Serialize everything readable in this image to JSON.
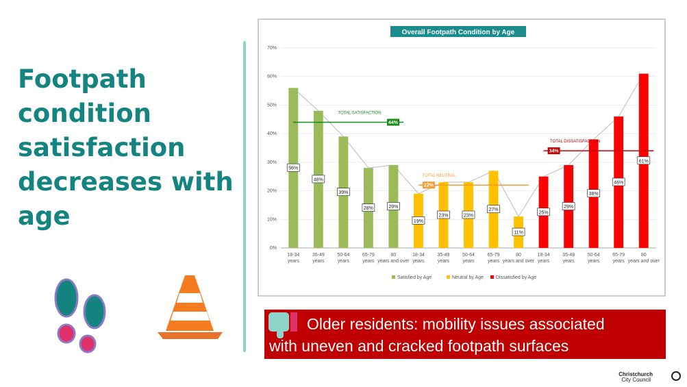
{
  "headline": {
    "lines": [
      "Footpath",
      "condition",
      "satisfaction",
      "decreases with",
      "age"
    ]
  },
  "chart_data": {
    "type": "bar",
    "title": "Overall Footpath Condition by Age",
    "categories": [
      "18-34 years",
      "35-49 years",
      "50-64 years",
      "65-79 years",
      "80 years and over",
      "18-34 years",
      "35-49 years",
      "50-64 years",
      "65-79 years",
      "80 years and over",
      "18-34 years",
      "35-49 years",
      "50-64 years",
      "65-79 years",
      "80 years and over"
    ],
    "series": [
      {
        "name": "Satisfied by Age",
        "color": "#9bbb59",
        "values": [
          56,
          48,
          39,
          28,
          29,
          null,
          null,
          null,
          null,
          null,
          null,
          null,
          null,
          null,
          null
        ],
        "value_labels": [
          "56%",
          "48%",
          "39%",
          "28%",
          "29%",
          null,
          null,
          null,
          null,
          null,
          null,
          null,
          null,
          null,
          null
        ],
        "total_label": "TOTAL SATISFACTION",
        "total": 44,
        "total_value_label": "44%",
        "total_color": "#178a17"
      },
      {
        "name": "Neutral by Age",
        "color": "#ffc000",
        "values": [
          null,
          null,
          null,
          null,
          null,
          19,
          23,
          23,
          27,
          11,
          null,
          null,
          null,
          null,
          null
        ],
        "value_labels": [
          null,
          null,
          null,
          null,
          null,
          "19%",
          "23%",
          "23%",
          "27%",
          "11%",
          null,
          null,
          null,
          null,
          null
        ],
        "total_label": "TOTAL NEUTRAL",
        "total": 22,
        "total_value_label": "22%",
        "total_color": "#f79a30"
      },
      {
        "name": "Dissatisfied by Age",
        "color": "#ff0000",
        "values": [
          null,
          null,
          null,
          null,
          null,
          null,
          null,
          null,
          null,
          null,
          25,
          29,
          38,
          46,
          61
        ],
        "value_labels": [
          null,
          null,
          null,
          null,
          null,
          null,
          null,
          null,
          null,
          null,
          "25%",
          "29%",
          "38%",
          "46%",
          "61%"
        ],
        "total_label": "TOTAL DISSATISFACTION",
        "total": 34,
        "total_value_label": "34%",
        "total_color": "#c00000"
      }
    ],
    "ylim": [
      0,
      70
    ],
    "yticks": [
      {
        "value": 0,
        "label": "0%"
      },
      {
        "value": 10,
        "label": "10%"
      },
      {
        "value": 20,
        "label": "20%"
      },
      {
        "value": 30,
        "label": "30%"
      },
      {
        "value": 40,
        "label": "40%"
      },
      {
        "value": 50,
        "label": "50%"
      },
      {
        "value": 60,
        "label": "60%"
      },
      {
        "value": 70,
        "label": "70%"
      }
    ],
    "legend": "bottom"
  },
  "banner": {
    "lines": [
      "Older residents: mobility issues associated",
      "with uneven and cracked footpath surfaces"
    ]
  },
  "logo": {
    "lines": [
      "Christchurch",
      "City Council"
    ]
  }
}
